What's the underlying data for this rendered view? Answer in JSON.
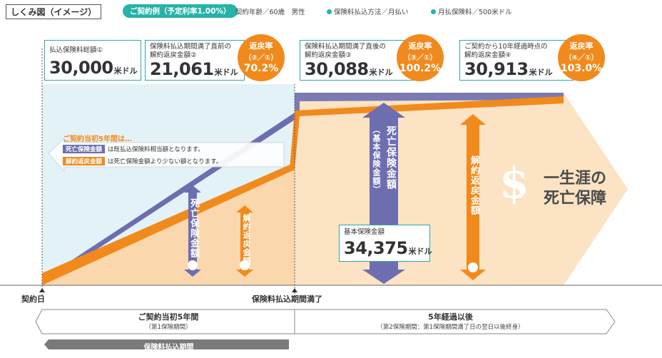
{
  "header": {
    "title": "しくみ図（イメージ）",
    "example_label": "ご契約例（予定利率1.00%）",
    "conditions": [
      "契約年齢／60歳　男性",
      "保険料払込方法／月払い",
      "月払保険料／500米ドル"
    ]
  },
  "cards": [
    {
      "label_lines": [
        "払込保険料総額①"
      ],
      "amount": "30,000",
      "unit": "米ドル"
    },
    {
      "label_lines": [
        "保険料払込期間満了直前の",
        "解約返戻金額②"
      ],
      "amount": "21,061",
      "unit": "米ドル",
      "badge": {
        "title": "返戻率",
        "formula": "（②／①）",
        "rate": "70.2%"
      }
    },
    {
      "label_lines": [
        "保険料払込期間満了直後の",
        "解約返戻金額③"
      ],
      "amount": "30,088",
      "unit": "米ドル",
      "badge": {
        "title": "返戻率",
        "formula": "（③／①）",
        "rate": "100.2%"
      }
    },
    {
      "label_lines": [
        "ご契約から10年経過時点の",
        "解約返戻金額④"
      ],
      "amount": "30,913",
      "unit": "米ドル",
      "badge": {
        "title": "返戻率",
        "formula": "（④／①）",
        "rate": "103.0%"
      }
    }
  ],
  "notice": {
    "heading": "ご契約当初5年間は…",
    "death_tag": "死亡保険金額",
    "death_text": "は既払込保険料相当額となります。",
    "surrender_tag": "解約返戻金額",
    "surrender_text": "は死亡保険金額より少ない額となります。"
  },
  "arrows": {
    "death_early": "死亡保険金額",
    "surrender_early": "解約返戻金額",
    "death_late_main": "死亡保険金額",
    "death_late_sub": "（基本保険金額）",
    "surrender_late": "解約返戻金額"
  },
  "base_box": {
    "label": "基本保険金額",
    "amount": "34,375",
    "unit": "米ドル"
  },
  "lifetime": {
    "line1": "一生涯の",
    "line2": "死亡保障"
  },
  "timeline": {
    "start": "契約日",
    "payment_end": "保険料払込期間満了",
    "period1_main": "ご契約当初5年間",
    "period1_sub": "（第1保険期間）",
    "period2_main": "5年経過以後",
    "period2_sub": "（第2保険期間：第1保険期間満了日の翌日以後終身）",
    "payment_period": "保険料払込期間"
  },
  "colors": {
    "teal": "#2fa9a4",
    "orange": "#f18a1c",
    "purple": "#6d6eb0",
    "light_blue": "#e3f2f7",
    "light_orange": "#fbe3c4"
  }
}
